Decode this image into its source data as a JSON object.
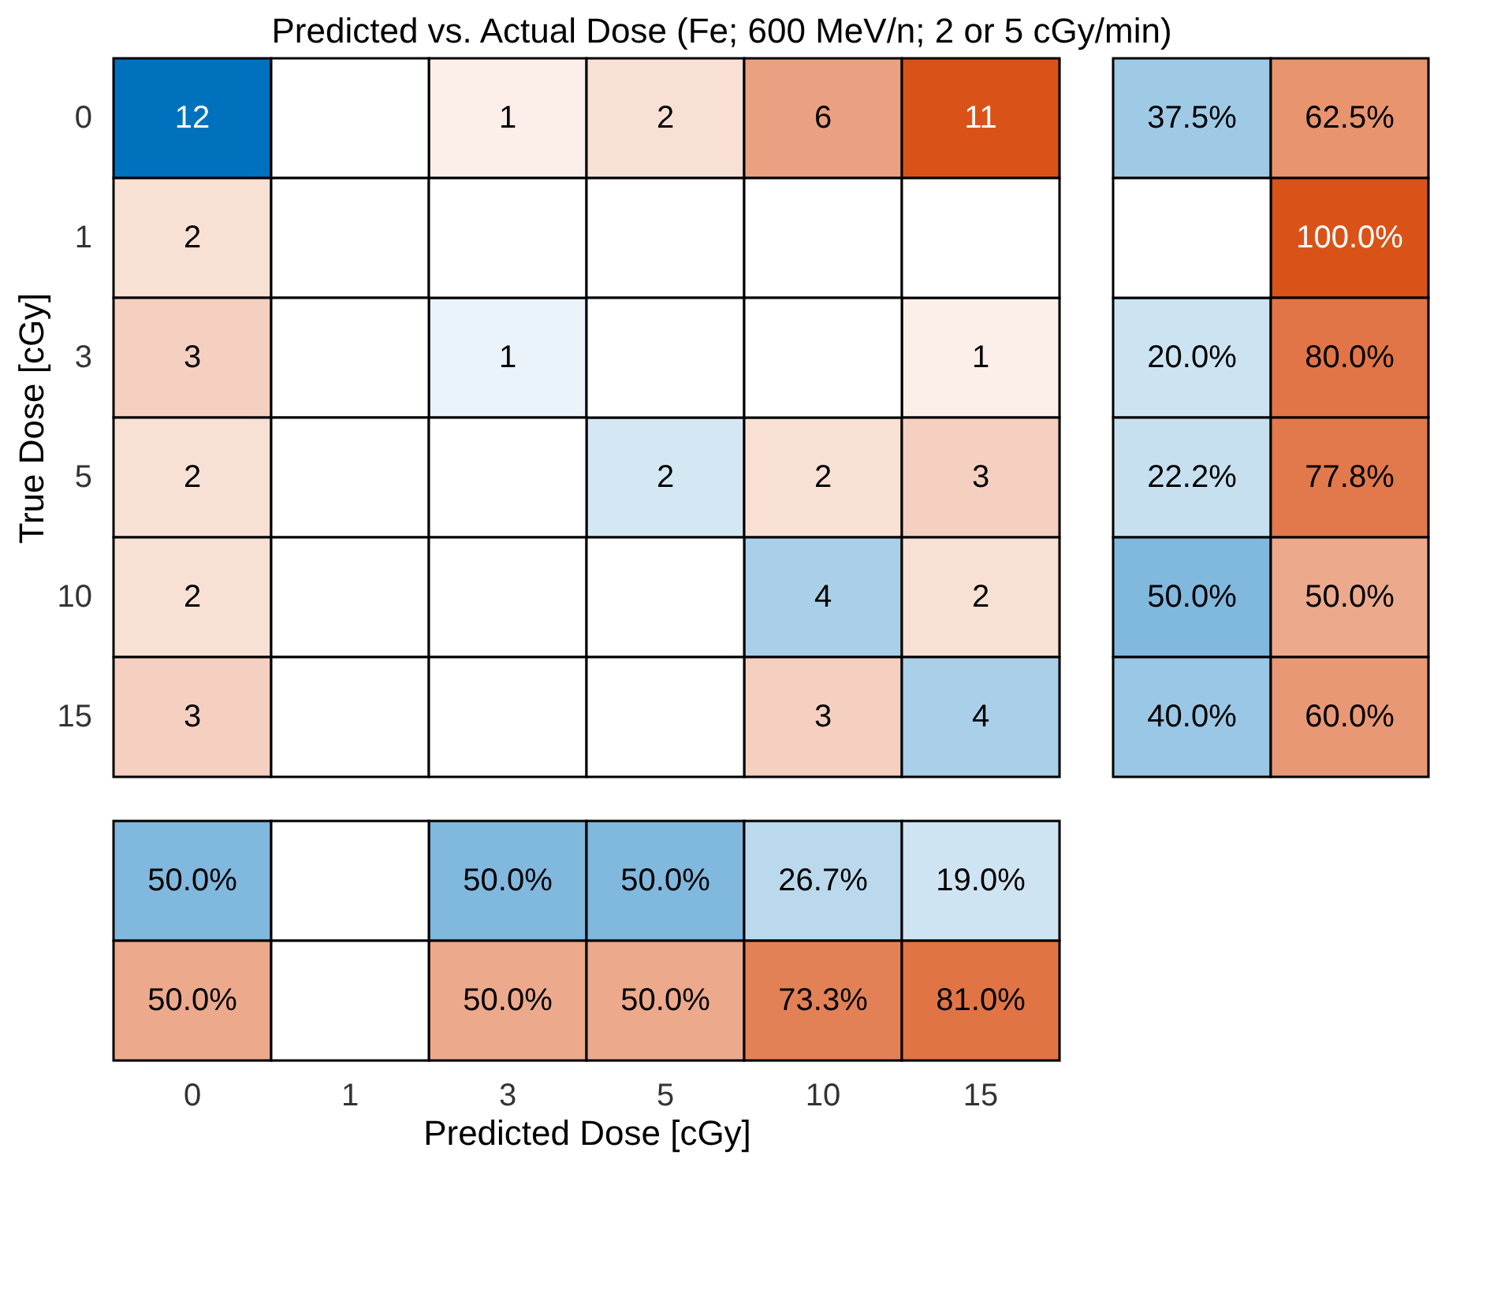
{
  "chart_data": [
    {
      "type": "heatmap",
      "title": "Predicted vs. Actual Dose (Fe; 600 MeV/n; 2 or 5 cGy/min)",
      "ylabel": "True Dose [cGy]",
      "categories": [
        "0",
        "1",
        "3",
        "5",
        "10",
        "15"
      ],
      "y_categories": [
        "0",
        "1",
        "3",
        "5",
        "10",
        "15"
      ],
      "tick_labels": "y",
      "data_labels": true,
      "cells": [
        [
          12,
          null,
          1,
          2,
          6,
          11
        ],
        [
          2,
          null,
          null,
          null,
          null,
          null
        ],
        [
          3,
          null,
          1,
          null,
          null,
          1
        ],
        [
          2,
          null,
          null,
          2,
          2,
          3
        ],
        [
          2,
          null,
          null,
          null,
          4,
          2
        ],
        [
          3,
          null,
          null,
          null,
          3,
          4
        ]
      ]
    },
    {
      "type": "heatmap",
      "categories": [
        null,
        null
      ],
      "y_categories": [
        null,
        null,
        null,
        null,
        null,
        null
      ],
      "tick_labels": false,
      "cells": [
        [
          37.5,
          62.5
        ],
        [
          null,
          100.0
        ],
        [
          20.0,
          80.0
        ],
        [
          22.2,
          77.8
        ],
        [
          50.0,
          50.0
        ],
        [
          40.0,
          60.0
        ]
      ],
      "cell_labels": [
        [
          "37.5%",
          "62.5%"
        ],
        [
          null,
          "100.0%"
        ],
        [
          "20.0%",
          "80.0%"
        ],
        [
          "22.2%",
          "77.8%"
        ],
        [
          "50.0%",
          "50.0%"
        ],
        [
          "40.0%",
          "60.0%"
        ]
      ]
    },
    {
      "type": "heatmap",
      "xlabel": "Predicted Dose [cGy]",
      "categories": [
        "0",
        "1",
        "3",
        "5",
        "10",
        "15"
      ],
      "y_categories": [
        null,
        null
      ],
      "tick_labels": "x",
      "cells": [
        [
          50.0,
          null,
          50.0,
          50.0,
          26.7,
          19.0
        ],
        [
          50.0,
          null,
          50.0,
          50.0,
          73.3,
          81.0
        ]
      ],
      "cell_labels": [
        [
          "50.0%",
          null,
          "50.0%",
          "50.0%",
          "26.7%",
          "19.0%"
        ],
        [
          "50.0%",
          null,
          "50.0%",
          "50.0%",
          "73.3%",
          "81.0%"
        ]
      ]
    }
  ]
}
